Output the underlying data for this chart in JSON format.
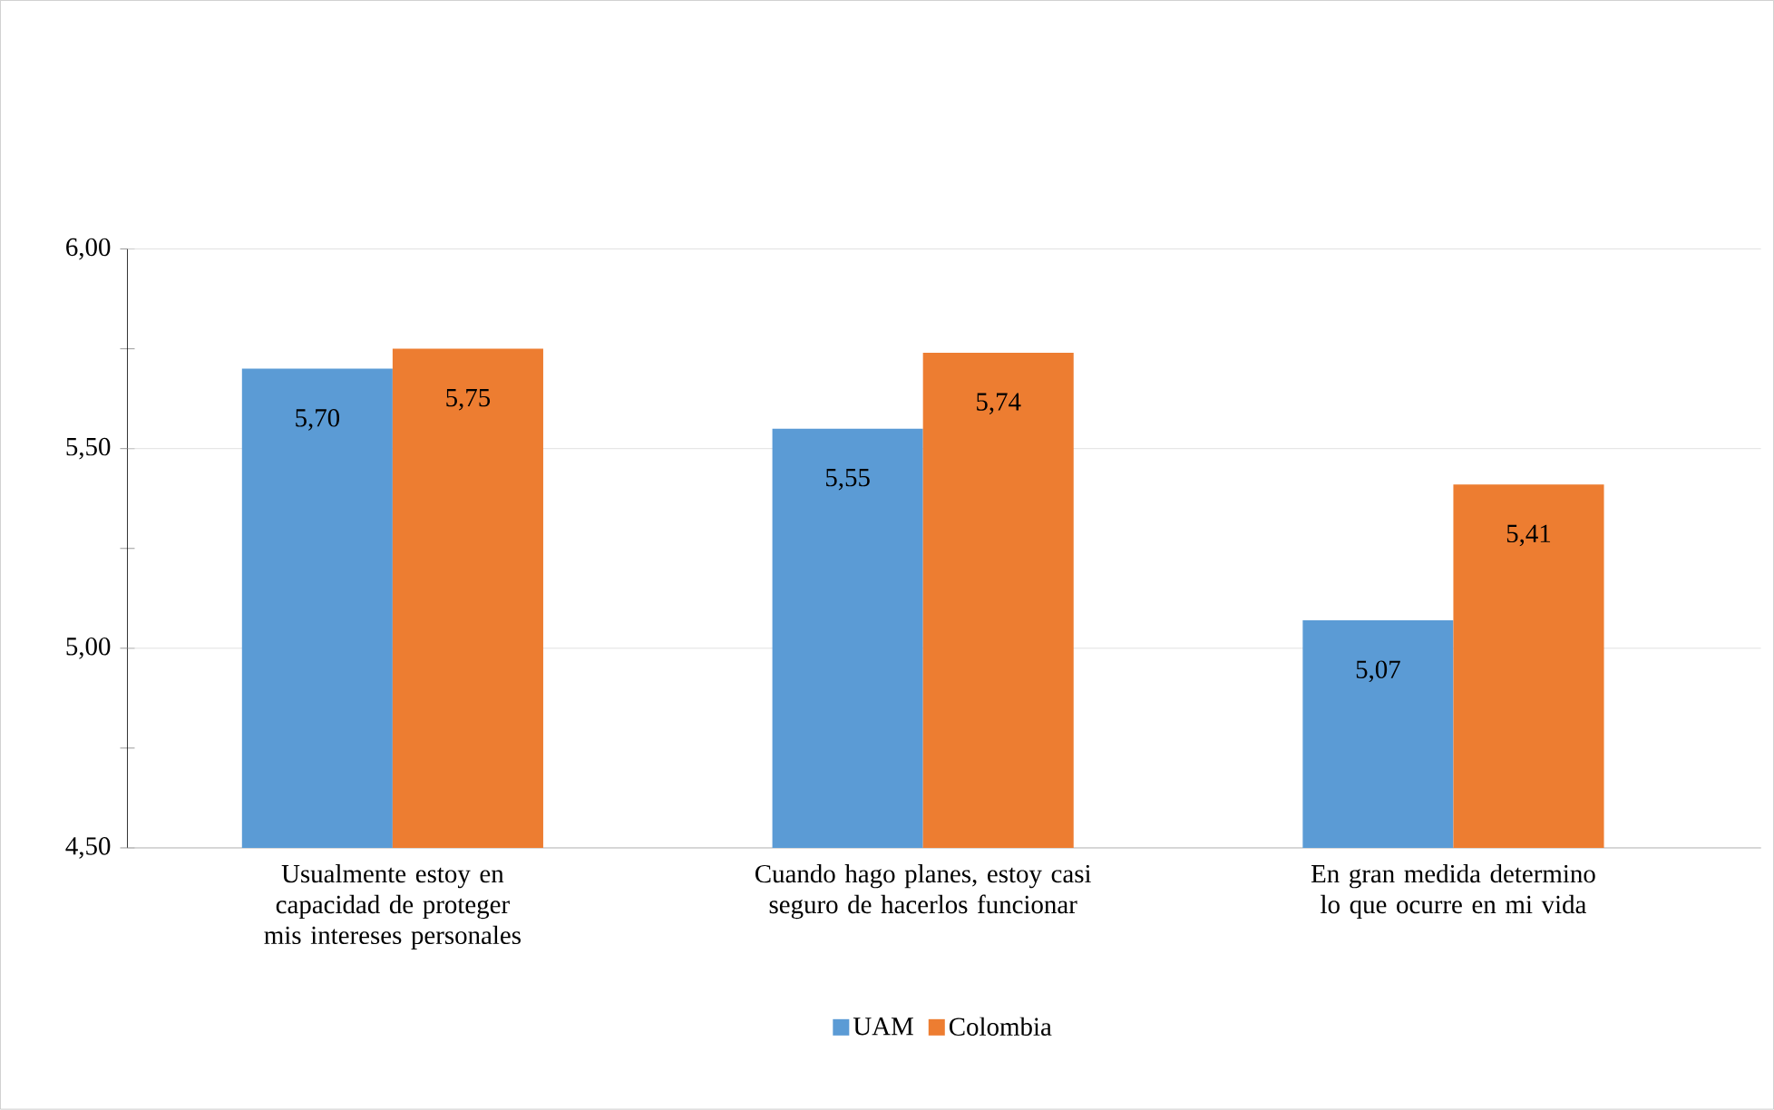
{
  "chart_data": {
    "type": "bar",
    "categories": [
      "Usualmente estoy en capacidad de proteger mis intereses personales",
      "Cuando hago planes, estoy casi seguro de hacerlos funcionar",
      "En gran medida determino lo que ocurre en mi vida"
    ],
    "series": [
      {
        "name": "UAM",
        "color": "#5b9bd5",
        "values": [
          5.7,
          5.55,
          5.07
        ],
        "value_labels": [
          "5,70",
          "5,55",
          "5,07"
        ]
      },
      {
        "name": "Colombia",
        "color": "#ed7d31",
        "values": [
          5.75,
          5.74,
          5.41
        ],
        "value_labels": [
          "5,75",
          "5,74",
          "5,41"
        ]
      }
    ],
    "ylim": [
      4.5,
      6.0
    ],
    "yticks": [
      {
        "value": 4.5,
        "label": "4,50"
      },
      {
        "value": 4.75,
        "label": null
      },
      {
        "value": 5.0,
        "label": "5,00"
      },
      {
        "value": 5.25,
        "label": null
      },
      {
        "value": 5.5,
        "label": "5,50"
      },
      {
        "value": 5.75,
        "label": null
      },
      {
        "value": 6.0,
        "label": "6,00"
      }
    ],
    "grid": "y",
    "legend": "bottom"
  }
}
